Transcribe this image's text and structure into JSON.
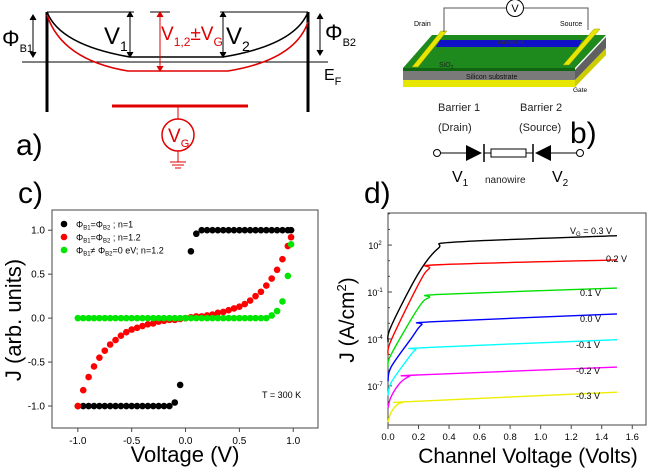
{
  "panel_a": {
    "label": "a)",
    "phi_b1": {
      "main": "Φ",
      "sub": "B1"
    },
    "phi_b2": {
      "main": "Φ",
      "sub": "B2"
    },
    "v1": {
      "main": "V",
      "sub": "1"
    },
    "v12": {
      "main": "V",
      "sub": "1,2",
      "mid": "±V",
      "sub2": "G"
    },
    "v2": {
      "main": "V",
      "sub": "2"
    },
    "ef": {
      "main": "E",
      "sub": "F"
    },
    "vg": {
      "main": "V",
      "sub": "G"
    }
  },
  "panel_b": {
    "label": "b)",
    "drain": "Drain",
    "source": "Source",
    "voltmeter": "V",
    "nanowire": "nanowire",
    "sio2": {
      "main": "SiO",
      "sub": "2"
    },
    "substrate": "Silicon substrate",
    "gate": "Gate",
    "barrier1": "Barrier 1",
    "barrier2": "Barrier 2",
    "drain_paren": "(Drain)",
    "source_paren": "(Source)",
    "v1": {
      "main": "V",
      "sub": "1"
    },
    "v2": {
      "main": "V",
      "sub": "2"
    },
    "nanowire_label": "nanowire"
  },
  "chart_data": [
    {
      "panel_label": "c)",
      "type": "scatter",
      "xlabel": "Voltage (V)",
      "ylabel": "J (arb. units)",
      "xlim": [
        -1.24,
        1.23
      ],
      "ylim": [
        -1.25,
        1.23
      ],
      "xticks": [
        {
          "v": -1,
          "label": "-1.0"
        },
        {
          "v": -0.5,
          "label": "-0.5"
        },
        {
          "v": 0,
          "label": "0.0"
        },
        {
          "v": 0.5,
          "label": "0.5"
        },
        {
          "v": 1,
          "label": "1.0"
        }
      ],
      "yticks": [
        {
          "v": -1,
          "label": "-1.0"
        },
        {
          "v": -0.5,
          "label": "-0.5"
        },
        {
          "v": 0,
          "label": "0.0"
        },
        {
          "v": 0.5,
          "label": "0.5"
        },
        {
          "v": 1,
          "label": "1.0"
        }
      ],
      "annotation": "T = 300 K",
      "legend_position": "top-left",
      "x": [
        -1.0,
        -0.95,
        -0.9,
        -0.85,
        -0.8,
        -0.75,
        -0.7,
        -0.65,
        -0.6,
        -0.55,
        -0.5,
        -0.45,
        -0.4,
        -0.35,
        -0.3,
        -0.25,
        -0.2,
        -0.15,
        -0.1,
        -0.05,
        0.0,
        0.05,
        0.1,
        0.15,
        0.2,
        0.25,
        0.3,
        0.35,
        0.4,
        0.45,
        0.5,
        0.55,
        0.6,
        0.65,
        0.7,
        0.75,
        0.8,
        0.85,
        0.9,
        0.95,
        0.98
      ],
      "series": [
        {
          "color": "#000000",
          "name_parts": [
            {
              "t": "Φ"
            },
            {
              "t": "B1",
              "sub": true
            },
            {
              "t": "=Φ"
            },
            {
              "t": "B2",
              "sub": true
            },
            {
              "t": " ; n=1"
            }
          ],
          "values": [
            -1.0,
            -1.0,
            -1.0,
            -1.0,
            -1.0,
            -1.0,
            -1.0,
            -1.0,
            -1.0,
            -1.0,
            -1.0,
            -1.0,
            -1.0,
            -1.0,
            -1.0,
            -1.0,
            -1.0,
            -1.0,
            -0.96,
            -0.76,
            0.0,
            0.76,
            0.96,
            1.0,
            1.0,
            1.0,
            1.0,
            1.0,
            1.0,
            1.0,
            1.0,
            1.0,
            1.0,
            1.0,
            1.0,
            1.0,
            1.0,
            1.0,
            1.0,
            1.0,
            1.0
          ]
        },
        {
          "color": "#ff0000",
          "name_parts": [
            {
              "t": "Φ"
            },
            {
              "t": "B1",
              "sub": true
            },
            {
              "t": "=Φ"
            },
            {
              "t": "B2",
              "sub": true
            },
            {
              "t": " ;  n=1.2"
            }
          ],
          "values": [
            -1.0,
            -0.82,
            -0.67,
            -0.55,
            -0.45,
            -0.37,
            -0.3,
            -0.25,
            -0.2,
            -0.16,
            -0.13,
            -0.11,
            -0.09,
            -0.07,
            -0.06,
            -0.04,
            -0.03,
            -0.02,
            -0.02,
            -0.01,
            0.0,
            0.01,
            0.02,
            0.02,
            0.03,
            0.04,
            0.06,
            0.07,
            0.09,
            0.11,
            0.13,
            0.16,
            0.2,
            0.25,
            0.3,
            0.37,
            0.45,
            0.55,
            0.67,
            0.82,
            0.92
          ]
        },
        {
          "color": "#00e600",
          "name_parts": [
            {
              "t": "Φ"
            },
            {
              "t": "B1",
              "sub": true
            },
            {
              "t": "≠ Φ"
            },
            {
              "t": "B2",
              "sub": true
            },
            {
              "t": "=0 eV; n=1.2"
            }
          ],
          "values": [
            0,
            0,
            0,
            0,
            0,
            0,
            0,
            0,
            0,
            0,
            0,
            0,
            0,
            0,
            0,
            0,
            0,
            0,
            0,
            0,
            0,
            0,
            0,
            0,
            0,
            0,
            0,
            0,
            0,
            0,
            0,
            0,
            0,
            0,
            0,
            0,
            0.03,
            0.08,
            0.19,
            0.48,
            0.84
          ]
        }
      ]
    },
    {
      "panel_label": "d)",
      "type": "line",
      "xlabel": "Channel Voltage (Volts)",
      "ylabel": {
        "main": "J (A/cm",
        "sup": "2",
        "end": ")"
      },
      "yscale": "log",
      "xlim": [
        0,
        1.69
      ],
      "ylim_log10": [
        -9.5,
        4.05
      ],
      "xticks": [
        {
          "v": 0,
          "label": "0.0"
        },
        {
          "v": 0.2,
          "label": "0.2"
        },
        {
          "v": 0.4,
          "label": "0.4"
        },
        {
          "v": 0.6,
          "label": "0.6"
        },
        {
          "v": 0.8,
          "label": "0.8"
        },
        {
          "v": 1.0,
          "label": "1.0"
        },
        {
          "v": 1.2,
          "label": "1.2"
        },
        {
          "v": 1.4,
          "label": "1.4"
        },
        {
          "v": 1.6,
          "label": "1.6"
        }
      ],
      "yticks": [
        {
          "v": 2,
          "base": "10",
          "exp": "2"
        },
        {
          "v": -1,
          "base": "10",
          "exp": "-1"
        },
        {
          "v": -4,
          "base": "10",
          "exp": "-4"
        },
        {
          "v": -7,
          "base": "10",
          "exp": "-7"
        }
      ],
      "series": [
        {
          "color": "#000000",
          "label": {
            "pre": "V",
            "sub": "G",
            "post": " = 0.3 V"
          },
          "points": [
            [
              0,
              -4.2
            ],
            [
              0.02,
              -3.2
            ],
            [
              0.2,
              0.2
            ],
            [
              0.33,
              1.8
            ],
            [
              0.45,
              2.2
            ],
            [
              1.5,
              2.6
            ]
          ]
        },
        {
          "color": "#ff0000",
          "label": {
            "post": "0.2 V"
          },
          "points": [
            [
              0,
              -5.0
            ],
            [
              0.02,
              -4.1
            ],
            [
              0.2,
              -0.5
            ],
            [
              0.27,
              0.5
            ],
            [
              0.35,
              0.75
            ],
            [
              1.5,
              1.05
            ]
          ]
        },
        {
          "color": "#00e000",
          "label": {
            "post": "0.1 V"
          },
          "points": [
            [
              0,
              -5.8
            ],
            [
              0.02,
              -5.0
            ],
            [
              0.2,
              -2.0
            ],
            [
              0.27,
              -1.35
            ],
            [
              0.35,
              -1.15
            ],
            [
              1.5,
              -0.75
            ]
          ]
        },
        {
          "color": "#0000ff",
          "label": {
            "post": "0.0 V"
          },
          "points": [
            [
              0,
              -6.7
            ],
            [
              0.02,
              -5.8
            ],
            [
              0.15,
              -4.0
            ],
            [
              0.22,
              -3.1
            ],
            [
              0.3,
              -2.9
            ],
            [
              1.5,
              -2.4
            ]
          ]
        },
        {
          "color": "#00ffff",
          "label": {
            "post": "-0.1 V"
          },
          "points": [
            [
              0,
              -7.6
            ],
            [
              0.02,
              -6.8
            ],
            [
              0.12,
              -5.4
            ],
            [
              0.18,
              -4.7
            ],
            [
              0.25,
              -4.55
            ],
            [
              1.5,
              -4.05
            ]
          ]
        },
        {
          "color": "#ff00ff",
          "label": {
            "post": "-0.2 V"
          },
          "points": [
            [
              0,
              -8.4
            ],
            [
              0.02,
              -7.7
            ],
            [
              0.08,
              -6.8
            ],
            [
              0.14,
              -6.4
            ],
            [
              0.2,
              -6.3
            ],
            [
              1.5,
              -5.8
            ]
          ]
        },
        {
          "color": "#eeee00",
          "label": {
            "post": "-0.3 V"
          },
          "points": [
            [
              0,
              -9.3
            ],
            [
              0.02,
              -8.7
            ],
            [
              0.06,
              -8.2
            ],
            [
              0.1,
              -8.05
            ],
            [
              0.15,
              -8.0
            ],
            [
              1.5,
              -7.4
            ]
          ]
        }
      ]
    }
  ]
}
